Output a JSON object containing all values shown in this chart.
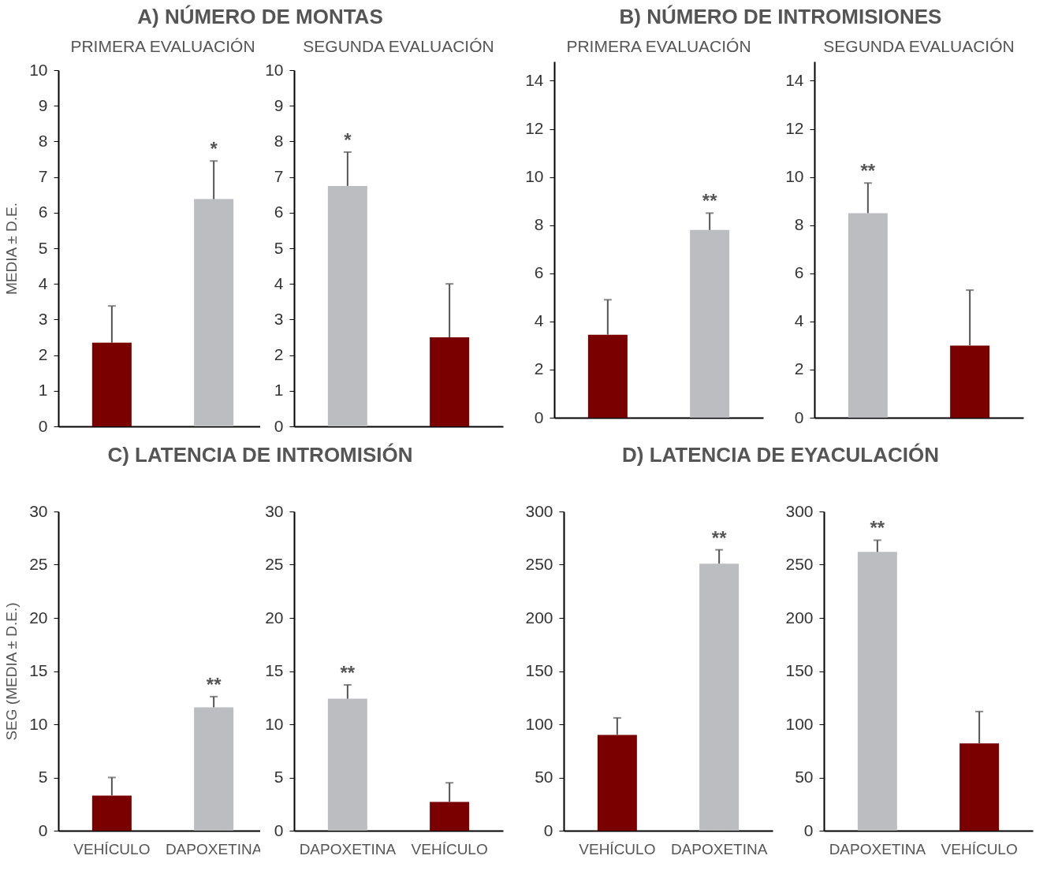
{
  "chart_data": [
    {
      "type": "bar",
      "title": "A) NÚMERO DE MONTAS",
      "subtitle": "PRIMERA EVALUACIÓN",
      "ylabel": "MEDIA ± D.E.",
      "categories": [
        null,
        null
      ],
      "values": [
        2.35,
        6.38
      ],
      "colors": [
        "#7a0000",
        "#bcbdc1"
      ],
      "errors": [
        [
          2.35,
          3.38
        ],
        [
          6.38,
          7.45
        ]
      ],
      "value_labels": [
        null,
        "*"
      ],
      "ylim": [
        0,
        10
      ],
      "yticks": [
        0,
        1,
        2,
        3,
        4,
        5,
        6,
        7,
        8,
        9,
        10
      ],
      "tick_labels": "y"
    },
    {
      "type": "bar",
      "subtitle": "SEGUNDA EVALUACIÓN",
      "categories": [
        null,
        null
      ],
      "values": [
        6.75,
        2.5
      ],
      "colors": [
        "#bcbdc1",
        "#7a0000"
      ],
      "errors": [
        [
          6.75,
          7.7
        ],
        [
          2.5,
          4.0
        ]
      ],
      "value_labels": [
        "*",
        null
      ],
      "ylim": [
        0,
        10
      ],
      "yticks": [
        0,
        1,
        2,
        3,
        4,
        5,
        6,
        7,
        8,
        9,
        10
      ],
      "tick_labels": "y"
    },
    {
      "type": "bar",
      "title": "B) NÚMERO DE INTROMISIONES",
      "subtitle": "PRIMERA EVALUACIÓN",
      "categories": [
        null,
        null
      ],
      "values": [
        3.45,
        7.8
      ],
      "colors": [
        "#7a0000",
        "#bcbdc1"
      ],
      "errors": [
        [
          3.45,
          4.9
        ],
        [
          7.8,
          8.5
        ]
      ],
      "value_labels": [
        null,
        "**"
      ],
      "ylim": [
        0,
        14.8
      ],
      "yticks": [
        0,
        2,
        4,
        6,
        8,
        10,
        12,
        14
      ],
      "tick_labels": "y"
    },
    {
      "type": "bar",
      "subtitle": "SEGUNDA EVALUACIÓN",
      "categories": [
        null,
        null
      ],
      "values": [
        8.5,
        3.0
      ],
      "colors": [
        "#bcbdc1",
        "#7a0000"
      ],
      "errors": [
        [
          8.5,
          9.75
        ],
        [
          3.0,
          5.3
        ]
      ],
      "value_labels": [
        "**",
        null
      ],
      "ylim": [
        0,
        14.8
      ],
      "yticks": [
        0,
        2,
        4,
        6,
        8,
        10,
        12,
        14
      ],
      "tick_labels": "y"
    },
    {
      "type": "bar",
      "title": "C) LATENCIA DE INTROMISIÓN",
      "ylabel": "SEG (MEDIA ± D.E.)",
      "categories": [
        "VEHÍCULO",
        "DAPOXETINA"
      ],
      "values": [
        3.3,
        11.6
      ],
      "colors": [
        "#7a0000",
        "#bcbdc1"
      ],
      "errors": [
        [
          3.3,
          5.0
        ],
        [
          11.6,
          12.6
        ]
      ],
      "value_labels": [
        null,
        "**"
      ],
      "ylim": [
        0,
        30
      ],
      "yticks": [
        0,
        5,
        10,
        15,
        20,
        25,
        30
      ]
    },
    {
      "type": "bar",
      "categories": [
        "DAPOXETINA",
        "VEHÍCULO"
      ],
      "values": [
        12.4,
        2.7
      ],
      "colors": [
        "#bcbdc1",
        "#7a0000"
      ],
      "errors": [
        [
          12.4,
          13.7
        ],
        [
          2.7,
          4.5
        ]
      ],
      "value_labels": [
        "**",
        null
      ],
      "ylim": [
        0,
        30
      ],
      "yticks": [
        0,
        5,
        10,
        15,
        20,
        25,
        30
      ]
    },
    {
      "type": "bar",
      "title": "D) LATENCIA DE EYACULACIÓN",
      "categories": [
        "VEHÍCULO",
        "DAPOXETINA"
      ],
      "values": [
        90,
        251
      ],
      "colors": [
        "#7a0000",
        "#bcbdc1"
      ],
      "errors": [
        [
          90,
          106
        ],
        [
          251,
          264
        ]
      ],
      "value_labels": [
        null,
        "**"
      ],
      "ylim": [
        0,
        300
      ],
      "yticks": [
        0,
        50,
        100,
        150,
        200,
        250,
        300
      ]
    },
    {
      "type": "bar",
      "categories": [
        "DAPOXETINA",
        "VEHÍCULO"
      ],
      "values": [
        262,
        82
      ],
      "colors": [
        "#bcbdc1",
        "#7a0000"
      ],
      "errors": [
        [
          262,
          273
        ],
        [
          82,
          112
        ]
      ],
      "value_labels": [
        "**",
        null
      ],
      "ylim": [
        0,
        300
      ],
      "yticks": [
        0,
        50,
        100,
        150,
        200,
        250,
        300
      ]
    }
  ]
}
